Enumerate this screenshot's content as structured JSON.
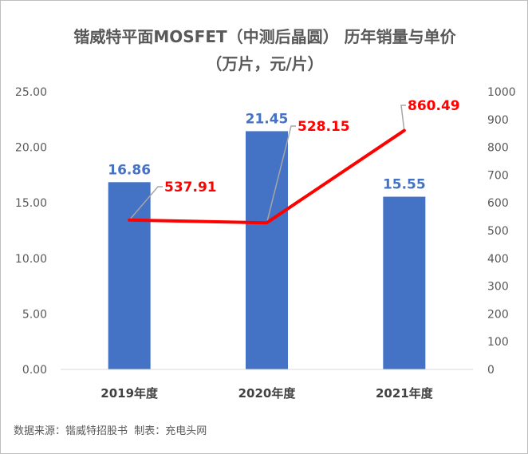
{
  "chart_data": {
    "type": "bar",
    "title_line1": "锴威特平面MOSFET（中测后晶圆） 历年销量与单价",
    "title_line2": "（万片，元/片）",
    "categories": [
      "2019年度",
      "2020年度",
      "2021年度"
    ],
    "series": [
      {
        "type": "bar",
        "axis": "left",
        "values": [
          16.86,
          21.45,
          15.55
        ],
        "labels": [
          "16.86",
          "21.45",
          "15.55"
        ],
        "color": "#4472c4"
      },
      {
        "type": "line",
        "axis": "right",
        "values": [
          537.91,
          528.15,
          860.49
        ],
        "labels": [
          "537.91",
          "528.15",
          "860.49"
        ],
        "color": "#ff0000"
      }
    ],
    "left_axis": {
      "ylim": [
        0,
        25
      ],
      "ticks": [
        "0.00",
        "5.00",
        "10.00",
        "15.00",
        "20.00",
        "25.00"
      ]
    },
    "right_axis": {
      "ylim": [
        0,
        1000
      ],
      "ticks": [
        "0",
        "100",
        "200",
        "300",
        "400",
        "500",
        "600",
        "700",
        "800",
        "900",
        "1000"
      ]
    },
    "grid": false,
    "legend": "none"
  },
  "footer": {
    "source_note": "数据来源：锴威特招股书  制表：充电头网"
  }
}
